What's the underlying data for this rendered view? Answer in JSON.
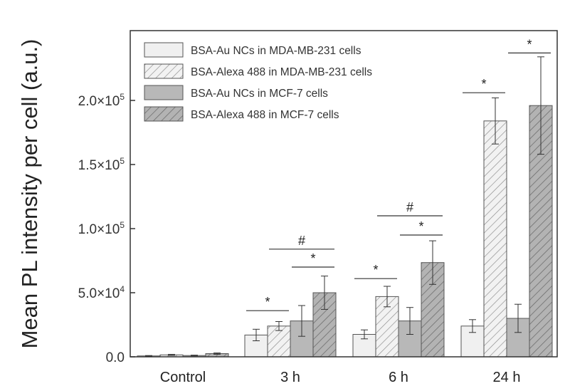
{
  "chart_data": {
    "type": "bar",
    "ylabel": "Mean PL intensity per cell (a.u.)",
    "xlabel": "",
    "categories": [
      "Control",
      "3 h",
      "6 h",
      "24 h"
    ],
    "ylim": [
      0,
      230000
    ],
    "yticks": [
      {
        "value": 0,
        "mant": "0.0",
        "exp": ""
      },
      {
        "value": 50000,
        "mant": "5.0×10",
        "exp": "4"
      },
      {
        "value": 100000,
        "mant": "1.0×10",
        "exp": "5"
      },
      {
        "value": 150000,
        "mant": "1.5×10",
        "exp": "5"
      },
      {
        "value": 200000,
        "mant": "2.0×10",
        "exp": "5"
      }
    ],
    "legend_position": "top-left",
    "series": [
      {
        "name": "BSA-Au NCs in MDA-MB-231 cells",
        "fill": "#f0f0f0",
        "hatch": false,
        "values": [
          700,
          17000,
          17500,
          24000
        ],
        "errors": [
          300,
          4500,
          3500,
          5000
        ]
      },
      {
        "name": "BSA-Alexa 488 in MDA-MB-231 cells",
        "fill": "#f0f0f0",
        "hatch": true,
        "values": [
          1500,
          24000,
          47000,
          184000
        ],
        "errors": [
          400,
          3500,
          8000,
          18000
        ]
      },
      {
        "name": "BSA-Au NCs in MCF-7 cells",
        "fill": "#b8b8b8",
        "hatch": false,
        "values": [
          1000,
          28000,
          28000,
          30000
        ],
        "errors": [
          300,
          12000,
          10500,
          11000
        ]
      },
      {
        "name": "BSA-Alexa 488 in MCF-7 cells",
        "fill": "#b0b0b0",
        "hatch": true,
        "values": [
          2500,
          50000,
          73500,
          196000
        ],
        "errors": [
          500,
          13000,
          17000,
          38000
        ]
      }
    ],
    "annotations": [
      {
        "text": "*",
        "group": 1,
        "from": 0,
        "to": 1,
        "y": 36000
      },
      {
        "text": "*",
        "group": 1,
        "from": 2,
        "to": 3,
        "y": 70000
      },
      {
        "text": "#",
        "group": 1,
        "from": 1,
        "to": 3,
        "y": 84000
      },
      {
        "text": "*",
        "group": 2,
        "from": 0,
        "to": 1,
        "y": 61000
      },
      {
        "text": "*",
        "group": 2,
        "from": 2,
        "to": 3,
        "y": 95000
      },
      {
        "text": "#",
        "group": 2,
        "from": 1,
        "to": 3,
        "y": 110000
      },
      {
        "text": "*",
        "group": 3,
        "from": 0,
        "to": 1,
        "y": 206000
      },
      {
        "text": "*",
        "group": 3,
        "from": 2,
        "to": 3,
        "y": 237000
      }
    ]
  }
}
